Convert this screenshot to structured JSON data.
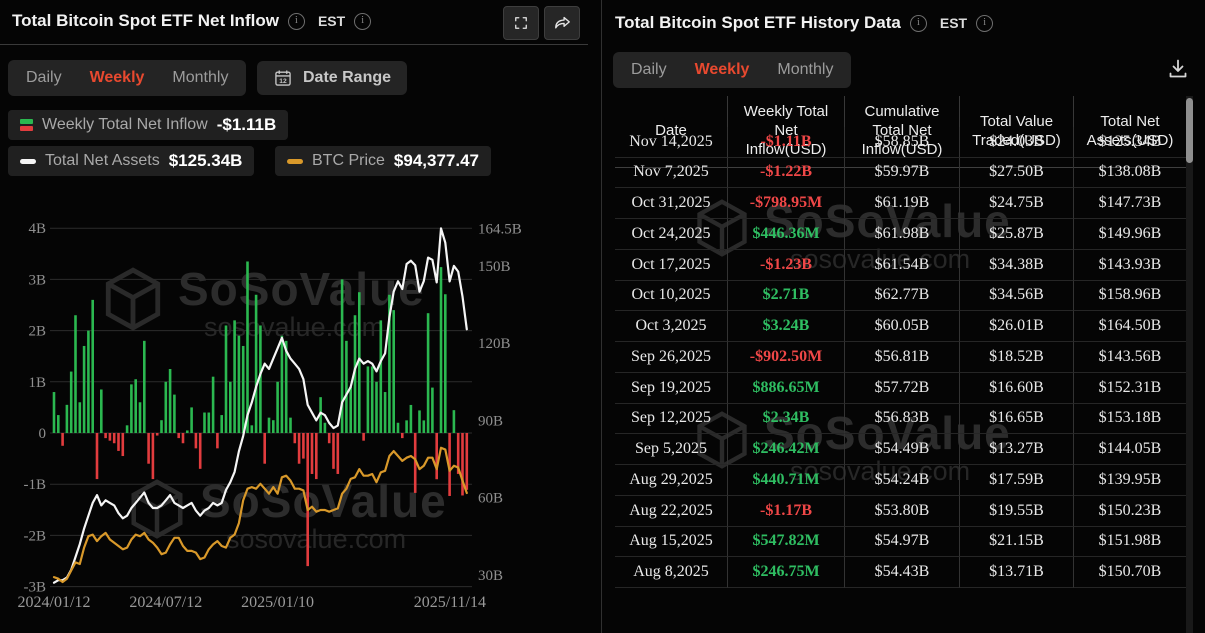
{
  "colors": {
    "accent": "#e8492f",
    "bar_pos": "#2bb850",
    "bar_neg": "#e23c3e",
    "assets_line": "#f5f5f5",
    "btc_line": "#d9992a",
    "table_pos": "#2fbe62",
    "table_neg": "#ef4747"
  },
  "watermark": {
    "brand": "SoSoValue",
    "domain": "sosovalue.com"
  },
  "left_panel": {
    "title": "Total Bitcoin Spot ETF Net Inflow",
    "est_label": "EST",
    "tabs": [
      "Daily",
      "Weekly",
      "Monthly"
    ],
    "active_tab": "Weekly",
    "date_range_label": "Date Range",
    "calendar_day": "12",
    "legend": [
      {
        "label": "Weekly Total Net Inflow",
        "value": "-$1.11B"
      },
      {
        "label": "Total Net Assets",
        "value": "$125.34B"
      },
      {
        "label": "BTC Price",
        "value": "$94,377.47"
      }
    ]
  },
  "right_panel": {
    "title": "Total Bitcoin Spot ETF History Data",
    "est_label": "EST",
    "tabs": [
      "Daily",
      "Weekly",
      "Monthly"
    ],
    "active_tab": "Weekly",
    "table": {
      "columns": [
        "Date",
        "Weekly Total Net Inflow(USD)",
        "Cumulative Total Net Inflow(USD)",
        "Total Value Traded(USD)",
        "Total Net Assets(USD)"
      ],
      "rows": [
        {
          "date": "Nov 14,2025",
          "weekly": "-$1.11B",
          "cumulative": "$58.85B",
          "traded": "$24.03B",
          "assets": "$125.34B"
        },
        {
          "date": "Nov 7,2025",
          "weekly": "-$1.22B",
          "cumulative": "$59.97B",
          "traded": "$27.50B",
          "assets": "$138.08B"
        },
        {
          "date": "Oct 31,2025",
          "weekly": "-$798.95M",
          "cumulative": "$61.19B",
          "traded": "$24.75B",
          "assets": "$147.73B"
        },
        {
          "date": "Oct 24,2025",
          "weekly": "$446.36M",
          "cumulative": "$61.98B",
          "traded": "$25.87B",
          "assets": "$149.96B"
        },
        {
          "date": "Oct 17,2025",
          "weekly": "-$1.23B",
          "cumulative": "$61.54B",
          "traded": "$34.38B",
          "assets": "$143.93B"
        },
        {
          "date": "Oct 10,2025",
          "weekly": "$2.71B",
          "cumulative": "$62.77B",
          "traded": "$34.56B",
          "assets": "$158.96B"
        },
        {
          "date": "Oct 3,2025",
          "weekly": "$3.24B",
          "cumulative": "$60.05B",
          "traded": "$26.01B",
          "assets": "$164.50B"
        },
        {
          "date": "Sep 26,2025",
          "weekly": "-$902.50M",
          "cumulative": "$56.81B",
          "traded": "$18.52B",
          "assets": "$143.56B"
        },
        {
          "date": "Sep 19,2025",
          "weekly": "$886.65M",
          "cumulative": "$57.72B",
          "traded": "$16.60B",
          "assets": "$152.31B"
        },
        {
          "date": "Sep 12,2025",
          "weekly": "$2.34B",
          "cumulative": "$56.83B",
          "traded": "$16.65B",
          "assets": "$153.18B"
        },
        {
          "date": "Sep 5,2025",
          "weekly": "$246.42M",
          "cumulative": "$54.49B",
          "traded": "$13.27B",
          "assets": "$144.05B"
        },
        {
          "date": "Aug 29,2025",
          "weekly": "$440.71M",
          "cumulative": "$54.24B",
          "traded": "$17.59B",
          "assets": "$139.95B"
        },
        {
          "date": "Aug 22,2025",
          "weekly": "-$1.17B",
          "cumulative": "$53.80B",
          "traded": "$19.55B",
          "assets": "$150.23B"
        },
        {
          "date": "Aug 15,2025",
          "weekly": "$547.82M",
          "cumulative": "$54.97B",
          "traded": "$21.15B",
          "assets": "$151.98B"
        },
        {
          "date": "Aug 8,2025",
          "weekly": "$246.75M",
          "cumulative": "$54.43B",
          "traded": "$13.71B",
          "assets": "$150.70B"
        }
      ]
    }
  },
  "chart_data": {
    "type": "combo-bar-line",
    "title": "Total Bitcoin Spot ETF Net Inflow (Weekly)",
    "x_range": [
      "2024/01/12",
      "2025/11/14"
    ],
    "x_ticks": [
      {
        "label": "2024/01/12",
        "week": 0
      },
      {
        "label": "2024/07/12",
        "week": 26
      },
      {
        "label": "2025/01/10",
        "week": 52
      },
      {
        "label": "2025/11/14",
        "week": 96
      }
    ],
    "left_axis": {
      "unit": "B (USD)",
      "ticks": [
        {
          "label": "4B",
          "value": 4
        },
        {
          "label": "3B",
          "value": 3
        },
        {
          "label": "2B",
          "value": 2
        },
        {
          "label": "1B",
          "value": 1
        },
        {
          "label": "0",
          "value": 0
        },
        {
          "label": "-1B",
          "value": -1
        },
        {
          "label": "-2B",
          "value": -2
        },
        {
          "label": "-3B",
          "value": -3
        }
      ]
    },
    "right_axis": {
      "unit": "B (USD)",
      "ticks": [
        {
          "label": "164.5B",
          "value": 164.5
        },
        {
          "label": "150B",
          "value": 150
        },
        {
          "label": "120B",
          "value": 120
        },
        {
          "label": "90B",
          "value": 90
        },
        {
          "label": "60B",
          "value": 60
        },
        {
          "label": "30B",
          "value": 30
        }
      ]
    },
    "btc_axis_hidden_range_k": [
      40,
      126
    ],
    "series": [
      {
        "name": "Weekly Total Net Inflow",
        "type": "bar",
        "unit": "USD B",
        "values": [
          0.8,
          0.35,
          -0.25,
          0.55,
          1.2,
          2.3,
          0.6,
          1.7,
          2.0,
          2.6,
          -0.9,
          0.85,
          -0.1,
          -0.15,
          -0.2,
          -0.35,
          -0.45,
          0.15,
          0.95,
          1.05,
          0.6,
          1.8,
          -0.6,
          -0.9,
          -0.05,
          0.25,
          1.0,
          1.25,
          0.75,
          -0.1,
          -0.2,
          0.05,
          0.5,
          -0.3,
          -0.7,
          0.4,
          0.4,
          1.1,
          -0.3,
          0.35,
          2.1,
          1.0,
          2.2,
          1.9,
          1.7,
          3.35,
          0.15,
          2.7,
          2.1,
          -0.6,
          0.3,
          0.25,
          1.0,
          1.9,
          1.8,
          0.3,
          -0.2,
          -0.6,
          -0.5,
          -2.6,
          -0.8,
          -0.9,
          0.7,
          0.2,
          -0.2,
          -0.7,
          -0.8,
          3.0,
          1.8,
          0.9,
          2.3,
          2.75,
          -0.15,
          1.3,
          1.3,
          1.0,
          2.2,
          0.8,
          2.7,
          2.4,
          0.2,
          -0.1,
          0.247,
          0.548,
          -1.17,
          0.441,
          0.246,
          2.34,
          0.887,
          -0.903,
          3.24,
          2.71,
          -1.23,
          0.446,
          -0.799,
          -1.22,
          -1.11
        ]
      },
      {
        "name": "Total Net Assets",
        "type": "line",
        "axis": "right",
        "unit": "USD B",
        "values": [
          27,
          28,
          28,
          29,
          32,
          37,
          42,
          48,
          53,
          58,
          61,
          57,
          59,
          58,
          57,
          54,
          52,
          53,
          56,
          58,
          60,
          62,
          58,
          56,
          56,
          57,
          59,
          61,
          58,
          57,
          56,
          57,
          58,
          55,
          53,
          55,
          56,
          58,
          57,
          58,
          63,
          66,
          70,
          78,
          84,
          92,
          97,
          103,
          108,
          112,
          110,
          114,
          118,
          122,
          117,
          114,
          112,
          110,
          106,
          96,
          93,
          90,
          93,
          92,
          89,
          87,
          88,
          97,
          100,
          103,
          110,
          114,
          112,
          113,
          112,
          109,
          113,
          116,
          130,
          140,
          144,
          141,
          150.7,
          151.98,
          150.23,
          139.95,
          144.05,
          153.18,
          152.31,
          143.56,
          164.5,
          158.96,
          143.93,
          149.96,
          147.73,
          138.08,
          125.34
        ]
      },
      {
        "name": "BTC Price",
        "type": "line",
        "axis": "btc",
        "unit": "USD k",
        "values": [
          43,
          42,
          40,
          42,
          47,
          52,
          51,
          61,
          68,
          69,
          65,
          68,
          70,
          66,
          64,
          62,
          60,
          61,
          66,
          69,
          68,
          70,
          66,
          64,
          61,
          57,
          58,
          63,
          67,
          67,
          62,
          59,
          59,
          58,
          54,
          55,
          60,
          63,
          65,
          62,
          61,
          67,
          69,
          76,
          90,
          97,
          98,
          97,
          100,
          97,
          94,
          98,
          94,
          104,
          105,
          102,
          97,
          97,
          96,
          84,
          86,
          83,
          84,
          84,
          83,
          84,
          85,
          94,
          97,
          103,
          104,
          109,
          105,
          105,
          106,
          101,
          107,
          108,
          117,
          120,
          117,
          114,
          116,
          117,
          115,
          109,
          111,
          116,
          116,
          109,
          122,
          121,
          108,
          111,
          110,
          102,
          94.4
        ]
      }
    ],
    "legend_position": "top-left",
    "grid": true
  }
}
